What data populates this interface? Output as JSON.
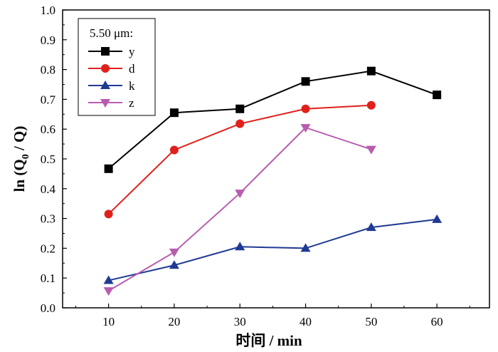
{
  "chart_data": {
    "type": "line",
    "title": "",
    "xlabel": "时间 / min",
    "ylabel_main": "ln (Q",
    "ylabel_sub": "0",
    "ylabel_tail": " / Q)",
    "xlim": [
      3,
      68
    ],
    "ylim": [
      0.0,
      1.0
    ],
    "xticks": [
      10,
      20,
      30,
      40,
      50,
      60
    ],
    "xtick_labels": [
      "10",
      "20",
      "30",
      "40",
      "50",
      "60"
    ],
    "yticks": [
      0.0,
      0.1,
      0.2,
      0.3,
      0.4,
      0.5,
      0.6,
      0.7,
      0.8,
      0.9,
      1.0
    ],
    "ytick_labels": [
      "0.0",
      "0.1",
      "0.2",
      "0.3",
      "0.4",
      "0.5",
      "0.6",
      "0.7",
      "0.8",
      "0.9",
      "1.0"
    ],
    "grid": false,
    "legend": {
      "title": "5.50 μm:",
      "position": "top-left"
    },
    "series": [
      {
        "name": "y",
        "color": "#000000",
        "marker": "square",
        "x": [
          10,
          20,
          30,
          40,
          50,
          60
        ],
        "y": [
          0.467,
          0.655,
          0.668,
          0.76,
          0.795,
          0.715
        ]
      },
      {
        "name": "d",
        "color": "#e0201b",
        "marker": "circle",
        "x": [
          10,
          20,
          30,
          40,
          50
        ],
        "y": [
          0.315,
          0.53,
          0.618,
          0.668,
          0.68
        ]
      },
      {
        "name": "k",
        "color": "#1f3a93",
        "marker": "triangle-up",
        "x": [
          10,
          20,
          30,
          40,
          50,
          60
        ],
        "y": [
          0.092,
          0.143,
          0.205,
          0.2,
          0.27,
          0.297
        ]
      },
      {
        "name": "z",
        "color": "#b85cae",
        "marker": "triangle-down",
        "x": [
          10,
          20,
          30,
          40,
          50
        ],
        "y": [
          0.057,
          0.187,
          0.385,
          0.605,
          0.532
        ]
      }
    ]
  }
}
